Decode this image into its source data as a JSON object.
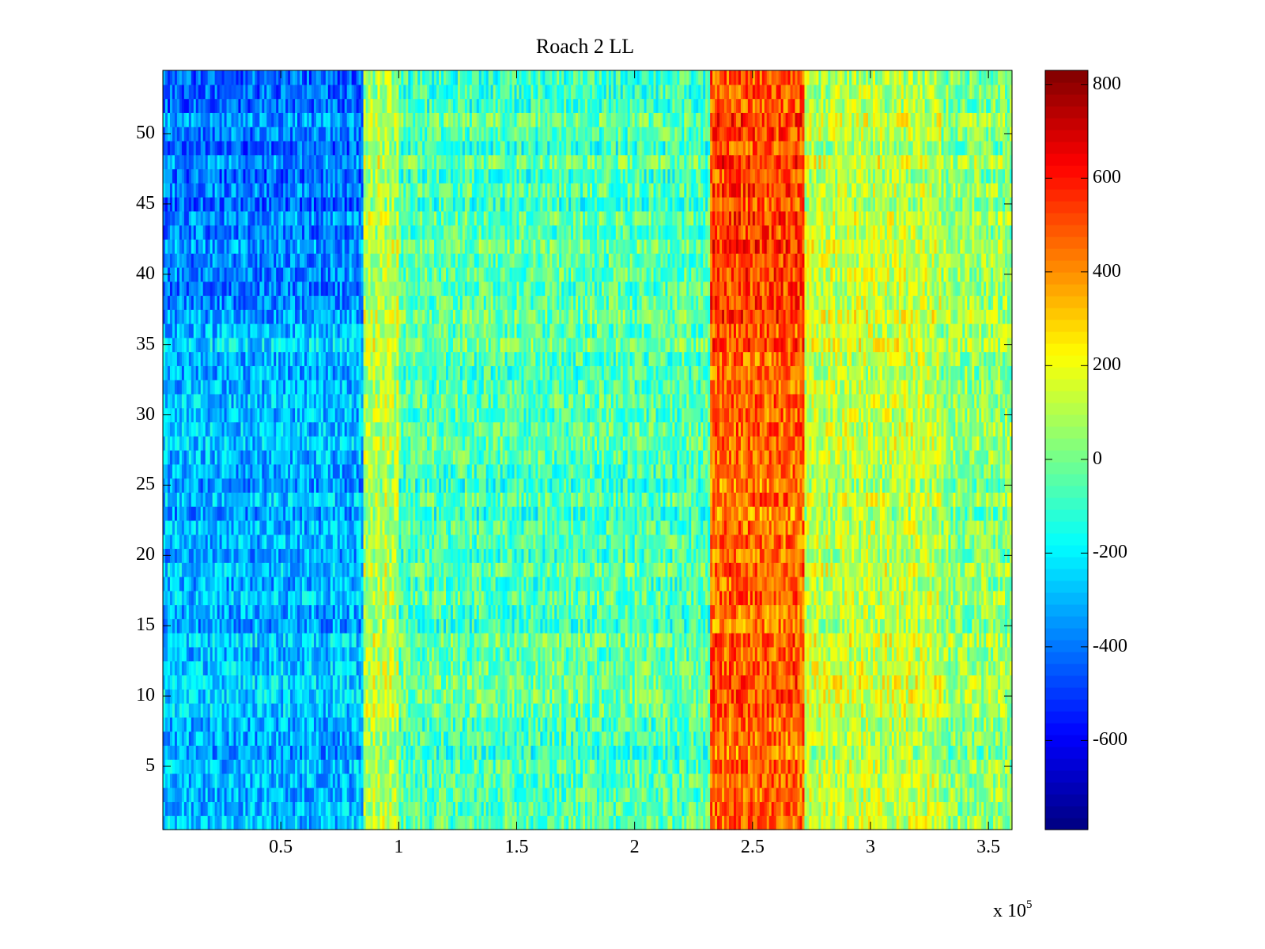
{
  "chart_data": {
    "type": "heatmap",
    "title": "Roach 2 LL",
    "xlabel": "",
    "ylabel": "",
    "x_multiplier_label": {
      "base": "x 10",
      "exponent": "5"
    },
    "xlim": [
      0,
      360000
    ],
    "ylim": [
      0.5,
      54.5
    ],
    "x_ticks": [
      {
        "value": 50000,
        "label": "0.5"
      },
      {
        "value": 100000,
        "label": "1"
      },
      {
        "value": 150000,
        "label": "1.5"
      },
      {
        "value": 200000,
        "label": "2"
      },
      {
        "value": 250000,
        "label": "2.5"
      },
      {
        "value": 300000,
        "label": "3"
      },
      {
        "value": 350000,
        "label": "3.5"
      }
    ],
    "y_ticks": [
      {
        "value": 5,
        "label": "5"
      },
      {
        "value": 10,
        "label": "10"
      },
      {
        "value": 15,
        "label": "15"
      },
      {
        "value": 20,
        "label": "20"
      },
      {
        "value": 25,
        "label": "25"
      },
      {
        "value": 30,
        "label": "30"
      },
      {
        "value": 35,
        "label": "35"
      },
      {
        "value": 40,
        "label": "40"
      },
      {
        "value": 45,
        "label": "45"
      },
      {
        "value": 50,
        "label": "50"
      }
    ],
    "colorbar": {
      "colormap": "jet",
      "clim": [
        -790,
        830
      ],
      "ticks": [
        {
          "value": 800,
          "label": "800"
        },
        {
          "value": 600,
          "label": "600"
        },
        {
          "value": 400,
          "label": "400"
        },
        {
          "value": 200,
          "label": "200"
        },
        {
          "value": 0,
          "label": "0"
        },
        {
          "value": -200,
          "label": "-200"
        },
        {
          "value": -400,
          "label": "-400"
        },
        {
          "value": -600,
          "label": "-600"
        }
      ]
    },
    "rows": 54,
    "x_bands": [
      {
        "x_start": 0,
        "x_end": 85000,
        "approx_value": -300
      },
      {
        "x_start": 85000,
        "x_end": 100000,
        "approx_value": 100
      },
      {
        "x_start": 100000,
        "x_end": 232000,
        "approx_value": -60
      },
      {
        "x_start": 232000,
        "x_end": 272000,
        "approx_value": 460
      },
      {
        "x_start": 272000,
        "x_end": 330000,
        "approx_value": 120
      },
      {
        "x_start": 330000,
        "x_end": 360000,
        "approx_value": 40
      }
    ],
    "grid": false
  }
}
